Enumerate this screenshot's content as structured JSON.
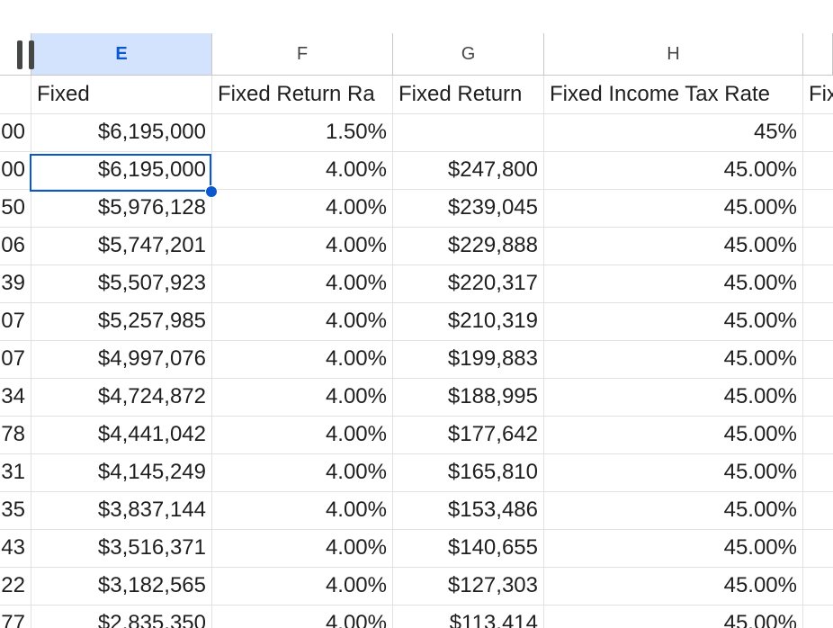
{
  "columns": [
    {
      "letter": ""
    },
    {
      "letter": "E"
    },
    {
      "letter": "F"
    },
    {
      "letter": "G"
    },
    {
      "letter": "H"
    },
    {
      "letter": ""
    }
  ],
  "selected_column": "E",
  "selected_cell": "E2",
  "header_row": [
    "",
    "Fixed",
    "Fixed Return Ra",
    "Fixed Return",
    "Fixed Income Tax Rate",
    "Fix"
  ],
  "rows": [
    [
      "00",
      "$6,195,000",
      "1.50%",
      "",
      "45%",
      ""
    ],
    [
      "00",
      "$6,195,000",
      "4.00%",
      "$247,800",
      "45.00%",
      ""
    ],
    [
      "50",
      "$5,976,128",
      "4.00%",
      "$239,045",
      "45.00%",
      ""
    ],
    [
      "06",
      "$5,747,201",
      "4.00%",
      "$229,888",
      "45.00%",
      ""
    ],
    [
      "39",
      "$5,507,923",
      "4.00%",
      "$220,317",
      "45.00%",
      ""
    ],
    [
      "07",
      "$5,257,985",
      "4.00%",
      "$210,319",
      "45.00%",
      ""
    ],
    [
      "07",
      "$4,997,076",
      "4.00%",
      "$199,883",
      "45.00%",
      ""
    ],
    [
      "34",
      "$4,724,872",
      "4.00%",
      "$188,995",
      "45.00%",
      ""
    ],
    [
      "78",
      "$4,441,042",
      "4.00%",
      "$177,642",
      "45.00%",
      ""
    ],
    [
      "31",
      "$4,145,249",
      "4.00%",
      "$165,810",
      "45.00%",
      ""
    ],
    [
      "35",
      "$3,837,144",
      "4.00%",
      "$153,486",
      "45.00%",
      ""
    ],
    [
      "43",
      "$3,516,371",
      "4.00%",
      "$140,655",
      "45.00%",
      ""
    ],
    [
      "22",
      "$3,182,565",
      "4.00%",
      "$127,303",
      "45.00%",
      ""
    ],
    [
      "77",
      "$2,835,350",
      "4.00%",
      "$113,414",
      "45.00%",
      ""
    ]
  ]
}
